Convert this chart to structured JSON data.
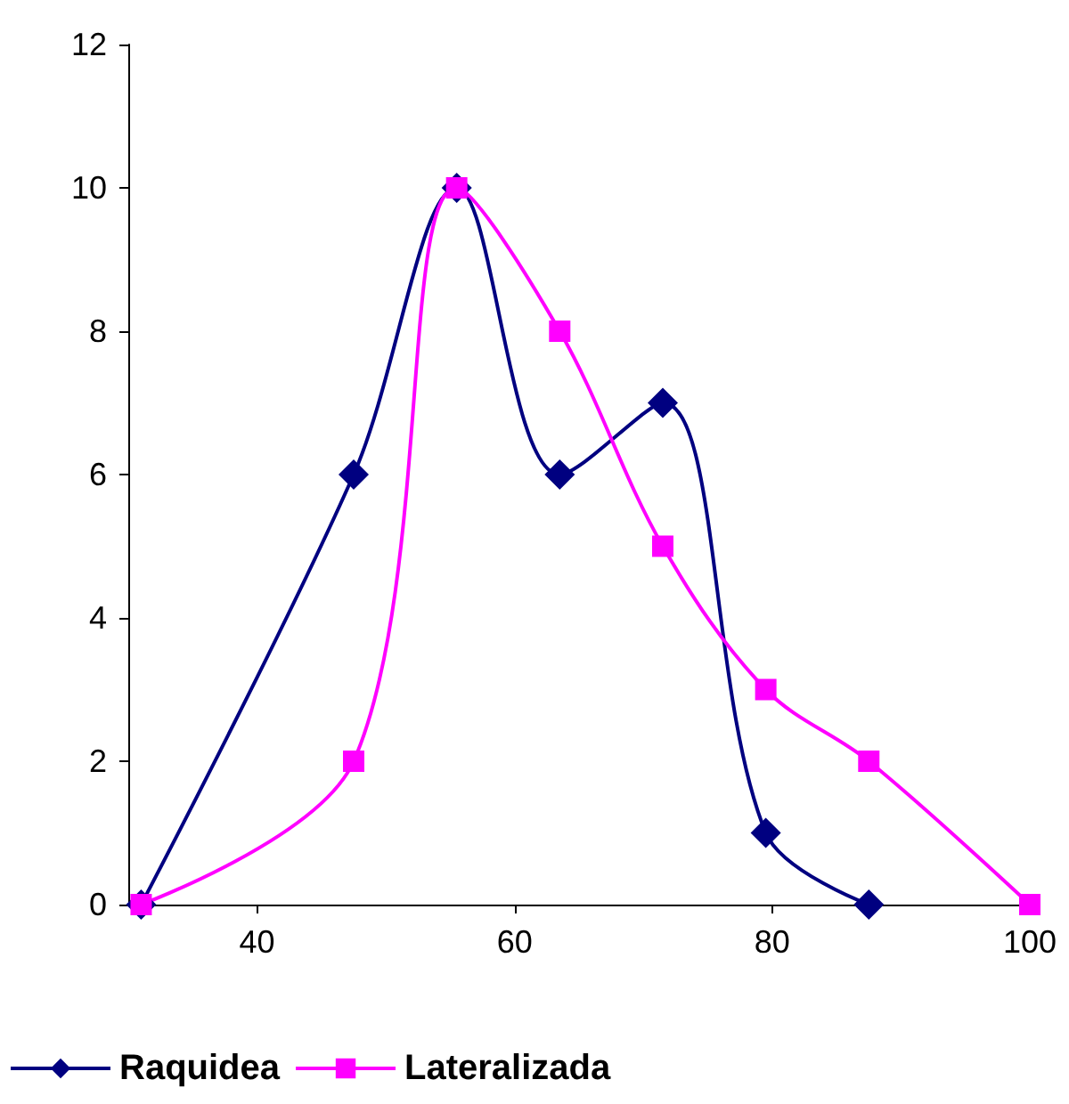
{
  "chart_data": {
    "type": "line",
    "xlim": [
      30,
      100
    ],
    "xticks": [
      40,
      60,
      80,
      100
    ],
    "ylim": [
      0,
      12
    ],
    "yticks": [
      0,
      2,
      4,
      6,
      8,
      10,
      12
    ],
    "grid": false,
    "legend": "bottom",
    "line_style": "solid",
    "series": [
      {
        "name": "Raquidea",
        "color": "#000080",
        "marker": "diamond",
        "x": [
          31,
          47.5,
          55.5,
          63.5,
          71.5,
          79.5,
          87.5
        ],
        "values": [
          0,
          6,
          10,
          6,
          7,
          1,
          0
        ]
      },
      {
        "name": "Lateralizada",
        "color": "#ff00ff",
        "marker": "square",
        "x": [
          31,
          47.5,
          55.5,
          63.5,
          71.5,
          79.5,
          87.5,
          100
        ],
        "values": [
          0,
          2,
          10,
          8,
          5,
          3,
          2,
          0
        ]
      }
    ]
  }
}
